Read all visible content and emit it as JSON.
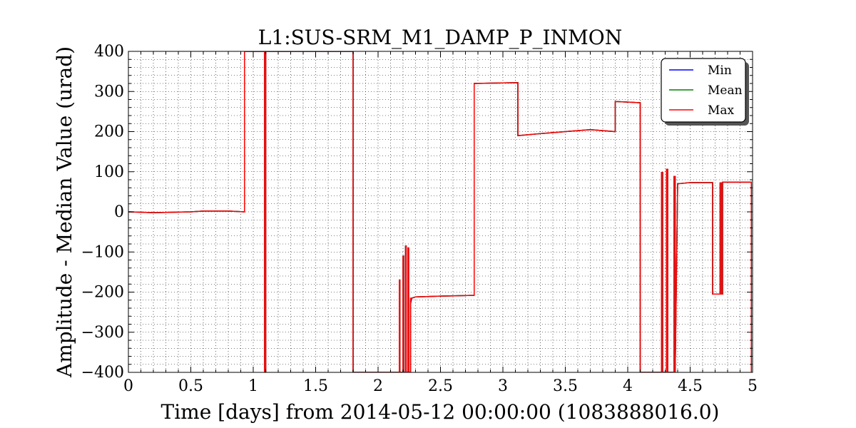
{
  "chart_data": {
    "type": "line",
    "title": "L1:SUS-SRM_M1_DAMP_P_INMON",
    "xlabel": "Time [days] from 2014-05-12 00:00:00 (1083888016.0)",
    "ylabel": "Amplitude - Median Value (urad)",
    "xlim": [
      0,
      5
    ],
    "ylim": [
      -400,
      400
    ],
    "xticks": [
      0,
      0.5,
      1,
      1.5,
      2,
      2.5,
      3,
      3.5,
      4,
      4.5,
      5
    ],
    "xtick_labels": [
      "0",
      "0.5",
      "1",
      "1.5",
      "2",
      "2.5",
      "3",
      "3.5",
      "4",
      "4.5",
      "5"
    ],
    "yticks": [
      -400,
      -300,
      -200,
      -100,
      0,
      100,
      200,
      300,
      400
    ],
    "ytick_labels": [
      "−400",
      "−300",
      "−200",
      "−100",
      "0",
      "100",
      "200",
      "300",
      "400"
    ],
    "grid": true,
    "legend_position": "top-right",
    "series": [
      {
        "name": "Min",
        "color": "#0000ff",
        "x": [
          0,
          0.1,
          0.2,
          0.5,
          0.6,
          0.8,
          0.93,
          0.93,
          1.09,
          1.09,
          1.1,
          1.1,
          1.8,
          1.8,
          1.81,
          1.81,
          2.17,
          2.17,
          2.175,
          2.175,
          2.2,
          2.2,
          2.205,
          2.205,
          2.22,
          2.22,
          2.225,
          2.225,
          2.24,
          2.24,
          2.245,
          2.245,
          2.26,
          2.26,
          2.27,
          2.3,
          2.5,
          2.77,
          2.77,
          3.12,
          3.12,
          3.3,
          3.5,
          3.7,
          3.9,
          3.9,
          4.1,
          4.1,
          4.27,
          4.27,
          4.28,
          4.28,
          4.31,
          4.31,
          4.32,
          4.32,
          4.37,
          4.37,
          4.38,
          4.38,
          4.4,
          4.5,
          4.68,
          4.68,
          4.74,
          4.74,
          4.75,
          4.75,
          4.76,
          4.76,
          4.77,
          4.77,
          4.99,
          4.99
        ],
        "y": [
          0,
          -1,
          -2,
          0,
          2,
          2,
          0,
          400,
          400,
          -400,
          -400,
          400,
          400,
          -400,
          -400,
          -400,
          -400,
          -170,
          -170,
          -400,
          -400,
          -110,
          -110,
          -400,
          -400,
          -85,
          -85,
          -400,
          -400,
          -90,
          -90,
          -400,
          -400,
          -230,
          -215,
          -212,
          -210,
          -208,
          320,
          322,
          190,
          195,
          200,
          205,
          200,
          275,
          272,
          -400,
          -400,
          98,
          98,
          -400,
          -400,
          106,
          106,
          -400,
          -400,
          88,
          88,
          -400,
          70,
          73,
          73,
          -205,
          -205,
          72,
          72,
          -205,
          -205,
          74,
          74,
          74,
          74,
          -400
        ]
      },
      {
        "name": "Mean",
        "color": "#008000",
        "x": [
          0,
          0.1,
          0.2,
          0.5,
          0.6,
          0.8,
          0.93,
          0.93,
          1.09,
          1.09,
          1.1,
          1.1,
          1.8,
          1.8,
          1.81,
          1.81,
          2.17,
          2.17,
          2.175,
          2.175,
          2.2,
          2.2,
          2.205,
          2.205,
          2.22,
          2.22,
          2.225,
          2.225,
          2.24,
          2.24,
          2.245,
          2.245,
          2.26,
          2.26,
          2.27,
          2.3,
          2.5,
          2.77,
          2.77,
          3.12,
          3.12,
          3.3,
          3.5,
          3.7,
          3.9,
          3.9,
          4.1,
          4.1,
          4.27,
          4.27,
          4.28,
          4.28,
          4.31,
          4.31,
          4.32,
          4.32,
          4.37,
          4.37,
          4.38,
          4.38,
          4.4,
          4.5,
          4.68,
          4.68,
          4.74,
          4.74,
          4.75,
          4.75,
          4.76,
          4.76,
          4.77,
          4.77,
          4.99,
          4.99
        ],
        "y": [
          0,
          -1,
          -2,
          0,
          2,
          2,
          0,
          400,
          400,
          -400,
          -400,
          400,
          400,
          -400,
          -400,
          -400,
          -400,
          -170,
          -170,
          -400,
          -400,
          -110,
          -110,
          -400,
          -400,
          -85,
          -85,
          -400,
          -400,
          -90,
          -90,
          -400,
          -400,
          -220,
          -215,
          -212,
          -210,
          -208,
          320,
          322,
          190,
          195,
          200,
          205,
          200,
          275,
          272,
          -400,
          -400,
          98,
          98,
          -400,
          -400,
          106,
          106,
          -400,
          -400,
          88,
          88,
          -400,
          70,
          73,
          73,
          -205,
          -205,
          72,
          72,
          -205,
          -205,
          74,
          74,
          74,
          74,
          -400
        ]
      },
      {
        "name": "Max",
        "color": "#ff0000",
        "x": [
          0,
          0.1,
          0.2,
          0.5,
          0.6,
          0.8,
          0.93,
          0.93,
          1.09,
          1.09,
          1.1,
          1.1,
          1.8,
          1.8,
          1.81,
          1.81,
          2.17,
          2.17,
          2.175,
          2.175,
          2.2,
          2.2,
          2.205,
          2.205,
          2.22,
          2.22,
          2.225,
          2.225,
          2.24,
          2.24,
          2.245,
          2.245,
          2.26,
          2.26,
          2.27,
          2.3,
          2.5,
          2.77,
          2.77,
          3.12,
          3.12,
          3.3,
          3.5,
          3.7,
          3.9,
          3.9,
          4.1,
          4.1,
          4.27,
          4.27,
          4.28,
          4.28,
          4.31,
          4.31,
          4.32,
          4.32,
          4.37,
          4.37,
          4.38,
          4.38,
          4.4,
          4.5,
          4.68,
          4.68,
          4.74,
          4.74,
          4.75,
          4.75,
          4.76,
          4.76,
          4.77,
          4.77,
          4.99,
          4.99
        ],
        "y": [
          0,
          -1,
          -2,
          0,
          2,
          2,
          0,
          400,
          400,
          -400,
          -400,
          400,
          400,
          -400,
          -400,
          -400,
          -400,
          -170,
          -170,
          -400,
          -400,
          -110,
          -110,
          -400,
          -400,
          -85,
          -85,
          -400,
          -400,
          -90,
          -90,
          -400,
          -400,
          -215,
          -215,
          -212,
          -210,
          -208,
          320,
          322,
          190,
          195,
          200,
          205,
          200,
          275,
          272,
          -400,
          -400,
          98,
          98,
          -400,
          -400,
          106,
          106,
          -400,
          -400,
          88,
          88,
          -400,
          70,
          73,
          73,
          -205,
          -205,
          72,
          72,
          -205,
          -205,
          74,
          74,
          74,
          74,
          -400
        ]
      }
    ]
  }
}
